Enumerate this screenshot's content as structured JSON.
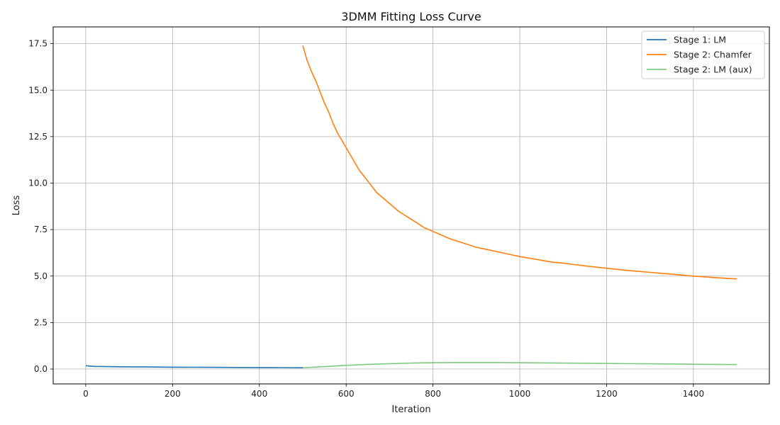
{
  "chart_data": {
    "type": "line",
    "title": "3DMM Fitting Loss Curve",
    "xlabel": "Iteration",
    "ylabel": "Loss",
    "xlim": [
      -75,
      1575
    ],
    "ylim": [
      -0.8,
      18.4
    ],
    "xticks": [
      0,
      200,
      400,
      600,
      800,
      1000,
      1200,
      1400
    ],
    "xtick_labels": [
      "0",
      "200",
      "400",
      "600",
      "800",
      "1000",
      "1200",
      "1400"
    ],
    "yticks": [
      0,
      2.5,
      5,
      7.5,
      10,
      12.5,
      15,
      17.5
    ],
    "ytick_labels": [
      "0.0",
      "2.5",
      "5.0",
      "7.5",
      "10.0",
      "12.5",
      "15.0",
      "17.5"
    ],
    "grid": true,
    "legend_position": "top-right",
    "series": [
      {
        "name": "Stage 1: LM",
        "color": "#1f77b4",
        "x": [
          0,
          10,
          20,
          50,
          100,
          150,
          200,
          250,
          300,
          350,
          400,
          450,
          500
        ],
        "y": [
          0.18,
          0.16,
          0.14,
          0.13,
          0.12,
          0.11,
          0.1,
          0.095,
          0.09,
          0.085,
          0.08,
          0.075,
          0.07
        ]
      },
      {
        "name": "Stage 2: Chamfer",
        "color": "#ff7f0e",
        "x": [
          500,
          510,
          520,
          530,
          540,
          550,
          560,
          570,
          580,
          590,
          600,
          610,
          620,
          630,
          640,
          650,
          660,
          670,
          680,
          690,
          700,
          720,
          740,
          760,
          780,
          800,
          820,
          840,
          860,
          880,
          900,
          920,
          940,
          960,
          980,
          1000,
          1025,
          1050,
          1075,
          1100,
          1125,
          1150,
          1175,
          1200,
          1225,
          1250,
          1275,
          1300,
          1325,
          1350,
          1375,
          1400,
          1425,
          1450,
          1475,
          1500
        ],
        "y": [
          17.4,
          16.6,
          16.0,
          15.5,
          14.9,
          14.3,
          13.8,
          13.2,
          12.7,
          12.3,
          11.9,
          11.5,
          11.1,
          10.7,
          10.4,
          10.1,
          9.8,
          9.5,
          9.3,
          9.1,
          8.9,
          8.5,
          8.2,
          7.9,
          7.6,
          7.4,
          7.2,
          7.0,
          6.85,
          6.7,
          6.55,
          6.45,
          6.35,
          6.25,
          6.15,
          6.05,
          5.95,
          5.85,
          5.75,
          5.7,
          5.62,
          5.55,
          5.48,
          5.42,
          5.36,
          5.3,
          5.25,
          5.2,
          5.15,
          5.1,
          5.05,
          5.0,
          4.96,
          4.92,
          4.88,
          4.85
        ]
      },
      {
        "name": "Stage 2: LM (aux)",
        "color": "#7fc97f",
        "x": [
          500,
          550,
          600,
          650,
          700,
          750,
          800,
          850,
          900,
          950,
          1000,
          1100,
          1200,
          1300,
          1400,
          1500
        ],
        "y": [
          0.07,
          0.13,
          0.2,
          0.25,
          0.29,
          0.32,
          0.34,
          0.35,
          0.35,
          0.35,
          0.34,
          0.32,
          0.3,
          0.28,
          0.26,
          0.24
        ]
      }
    ]
  }
}
